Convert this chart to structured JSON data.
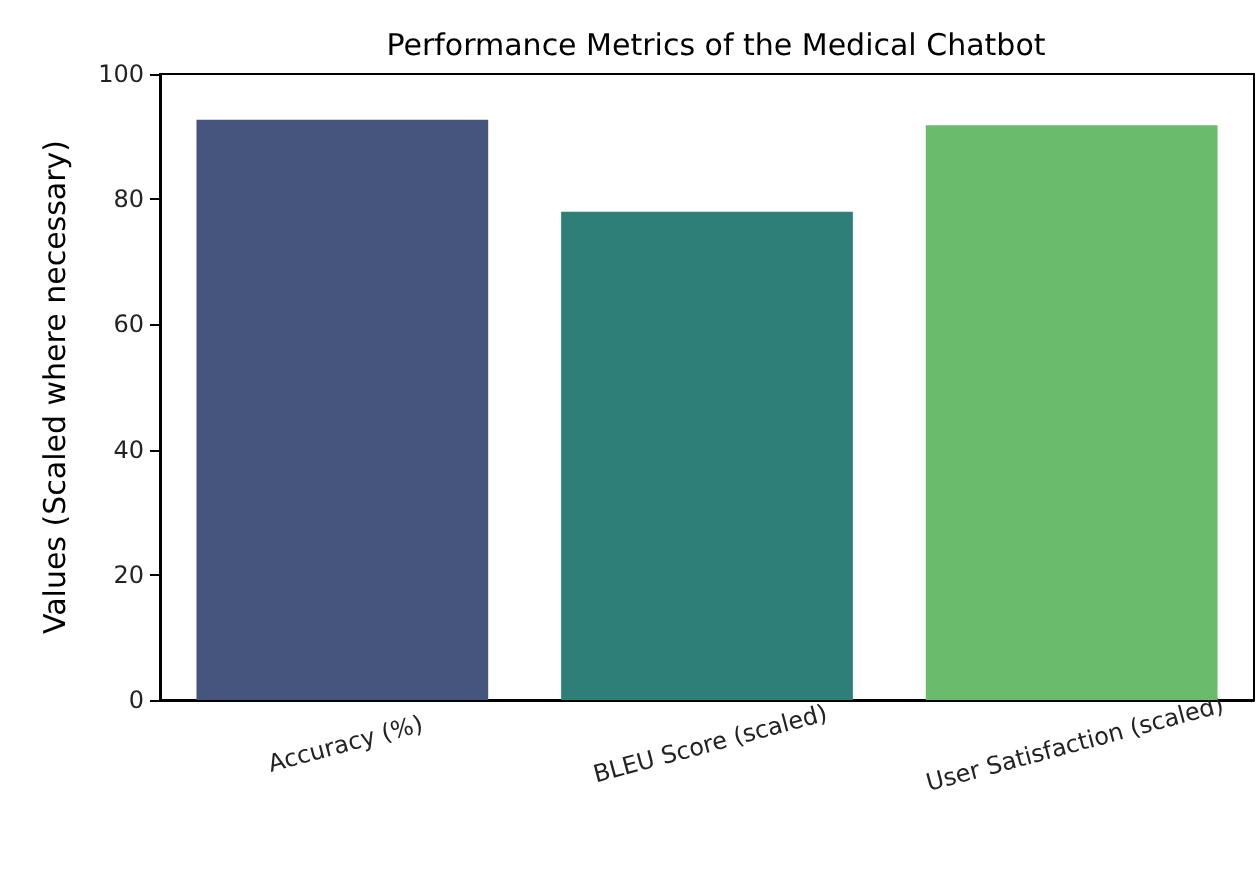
{
  "chart_data": {
    "type": "bar",
    "title": "Performance Metrics of the Medical Chatbot",
    "ylabel": "Values (Scaled where necessary)",
    "categories": [
      "Accuracy (%)",
      "BLEU Score (scaled)",
      "User Satisfaction (scaled)"
    ],
    "values": [
      92.7,
      78,
      91.8
    ],
    "colors": [
      "#46557d",
      "#2e7f78",
      "#6bbb6c"
    ],
    "ylim": [
      0,
      100
    ],
    "yticks": [
      0,
      20,
      40,
      60,
      80,
      100
    ],
    "grid": false
  }
}
